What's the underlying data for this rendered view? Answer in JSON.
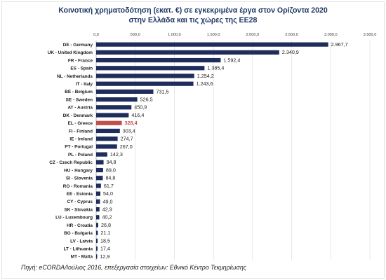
{
  "chart_data": {
    "type": "bar",
    "orientation": "horizontal",
    "title": "Κοινοτική χρηματοδότηση (εκατ. €) σε εγκεκριμένα έργα στον Ορίζοντα 2020",
    "subtitle": "στην Ελλάδα και τις χώρες της ΕΕ28",
    "categories": [
      "DE - Germany",
      "UK - United Kingdom",
      "FR - France",
      "ES - Spain",
      "NL - Netherlands",
      "IT - Italy",
      "BE - Belgium",
      "SE - Sweden",
      "AT - Austria",
      "DK - Denmark",
      "EL - Greece",
      "FI - Finland",
      "IE - Ireland",
      "PT - Portugal",
      "PL - Poland",
      "CZ - Czech Republic",
      "HU - Hungary",
      "SI - Slovenia",
      "RO - Romania",
      "EE - Estonia",
      "CY - Cyprus",
      "SK - Slovakia",
      "LU - Luxembourg",
      "HR - Croatia",
      "BG - Bulgaria",
      "LV - Latvia",
      "LT - Lithuania",
      "MT - Malta"
    ],
    "values": [
      2967.7,
      2340.9,
      1592.4,
      1385.4,
      1254.2,
      1243.6,
      731.5,
      526.5,
      450.9,
      416.4,
      328.4,
      303.4,
      274.7,
      267.0,
      142.3,
      94.8,
      89.0,
      84.8,
      61.7,
      54.0,
      49.0,
      42.9,
      40.2,
      26.8,
      21.1,
      18.5,
      17.4,
      12.9
    ],
    "value_labels": [
      "2.967,7",
      "2.340,9",
      "1.592,4",
      "1.385,4",
      "1.254,2",
      "1.243,6",
      "731,5",
      "526,5",
      "450,9",
      "416,4",
      "328,4",
      "303,4",
      "274,7",
      "267,0",
      "142,3",
      "94,8",
      "89,0",
      "84,8",
      "61,7",
      "54,0",
      "49,0",
      "42,9",
      "40,2",
      "26,8",
      "21,1",
      "18,5",
      "17,4",
      "12,9"
    ],
    "highlight": "EL - Greece",
    "xlim": [
      0,
      3500
    ],
    "x_ticks": [
      "0,0",
      "500,0",
      "1.000,0",
      "1.500,0",
      "2.000,0",
      "2.500,0",
      "3.000,0",
      "3.500,0"
    ],
    "grid": true,
    "colors": {
      "bar": "#1f2d5c",
      "highlight": "#c0504d",
      "highlight_label": "#c0504d",
      "grid": "#d9d9d9",
      "title": "#1f3864"
    }
  },
  "source": "Πηγή: eCORDA/Ιούλιος 2016, επεξεργασία στοιχείων: Εθνικό Κέντρο Τεκμηρίωσης"
}
